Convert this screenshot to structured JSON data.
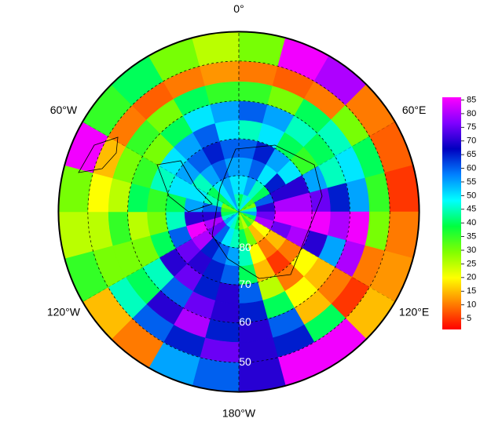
{
  "chart_data": {
    "type": "polar_heatmap",
    "lat_edges": [
      -90,
      -85,
      -80,
      -75,
      -70,
      -65,
      -60,
      -55,
      -50,
      -43
    ],
    "lon_edges": [
      0,
      15,
      30,
      45,
      60,
      75,
      90,
      105,
      120,
      135,
      150,
      165,
      180,
      195,
      210,
      225,
      240,
      255,
      270,
      285,
      300,
      315,
      330,
      345,
      360
    ],
    "values": [
      [
        40,
        45,
        50,
        35,
        30,
        45,
        55,
        40,
        30,
        35,
        25,
        30,
        40,
        45,
        50,
        55,
        45,
        40,
        35,
        30,
        40,
        50,
        55,
        45
      ],
      [
        50,
        55,
        45,
        40,
        60,
        70,
        75,
        80,
        20,
        15,
        30,
        40,
        45,
        50,
        60,
        75,
        80,
        70,
        60,
        45,
        40,
        50,
        55,
        50
      ],
      [
        55,
        60,
        50,
        65,
        70,
        80,
        85,
        75,
        15,
        10,
        20,
        45,
        55,
        60,
        65,
        80,
        85,
        70,
        55,
        50,
        45,
        55,
        60,
        55
      ],
      [
        60,
        65,
        55,
        50,
        70,
        80,
        85,
        80,
        10,
        5,
        15,
        40,
        60,
        65,
        70,
        75,
        60,
        45,
        40,
        50,
        55,
        60,
        65,
        60
      ],
      [
        45,
        50,
        40,
        35,
        55,
        75,
        85,
        70,
        20,
        10,
        25,
        60,
        70,
        65,
        75,
        70,
        40,
        30,
        35,
        45,
        50,
        55,
        60,
        50
      ],
      [
        60,
        55,
        45,
        40,
        45,
        65,
        80,
        55,
        15,
        20,
        40,
        65,
        70,
        75,
        60,
        45,
        30,
        25,
        40,
        35,
        30,
        40,
        50,
        55
      ],
      [
        35,
        30,
        40,
        45,
        50,
        55,
        85,
        80,
        10,
        15,
        60,
        70,
        65,
        80,
        70,
        40,
        30,
        35,
        25,
        30,
        35,
        30,
        40,
        35
      ],
      [
        10,
        8,
        10,
        30,
        40,
        35,
        30,
        10,
        5,
        40,
        65,
        70,
        75,
        65,
        60,
        45,
        30,
        25,
        20,
        15,
        10,
        8,
        10,
        12
      ],
      [
        30,
        85,
        80,
        10,
        8,
        5,
        10,
        12,
        15,
        85,
        85,
        70,
        60,
        55,
        10,
        15,
        35,
        25,
        30,
        85,
        35,
        40,
        30,
        25
      ]
    ],
    "colormap": [
      "#ff0000",
      "#ff8000",
      "#ffff00",
      "#80ff00",
      "#00ff40",
      "#00ffff",
      "#0080ff",
      "#0000c0",
      "#8000ff",
      "#ff00ff"
    ],
    "clim": [
      1,
      86
    ],
    "cticks": [
      5,
      10,
      15,
      20,
      25,
      30,
      35,
      40,
      45,
      50,
      55,
      60,
      65,
      70,
      75,
      80,
      85
    ],
    "lat_ticks": [
      {
        "value": -80,
        "label": "80"
      },
      {
        "value": -70,
        "label": "70"
      },
      {
        "value": -60,
        "label": "60"
      },
      {
        "value": -50,
        "label": "50"
      }
    ],
    "lon_ticks": [
      {
        "value": 0,
        "label": "0°"
      },
      {
        "value": 60,
        "label": "60°E"
      },
      {
        "value": 120,
        "label": "120°E"
      },
      {
        "value": 180,
        "label": "180°W"
      },
      {
        "value": -120,
        "label": "120°W"
      },
      {
        "value": -60,
        "label": "60°W"
      }
    ]
  }
}
